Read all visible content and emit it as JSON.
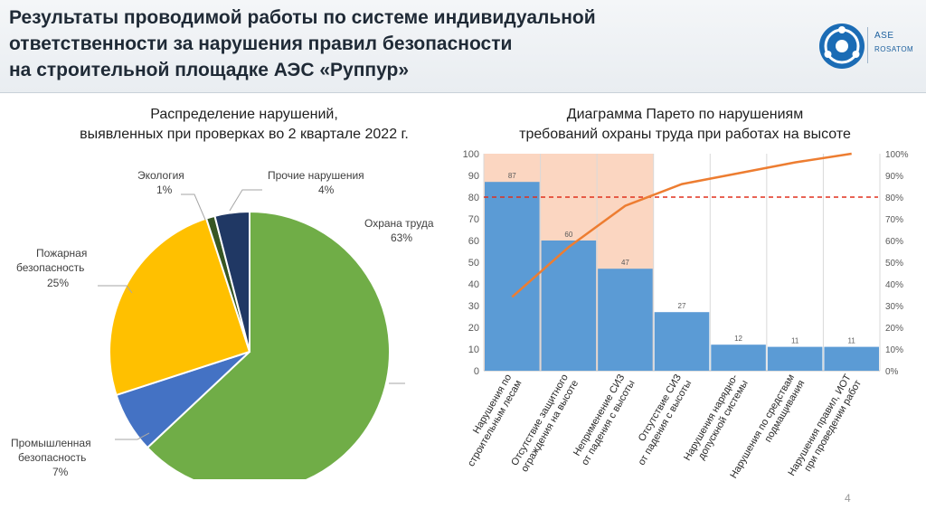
{
  "header": {
    "title_lines": [
      "Результаты проводимой работы по системе индивидуальной",
      "ответственности за нарушения правил безопасности",
      "на строительной площадке АЭС «Руппур»"
    ],
    "logo": {
      "line1": "ASE",
      "line2": "ROSATOM",
      "icon": "rosatom-atom-icon",
      "brand_color": "#1b6cb5"
    }
  },
  "chart_data": [
    {
      "type": "pie",
      "title_lines": [
        "Распределение нарушений,",
        "выявленных при проверках во 2 квартале 2022 г."
      ],
      "slices": [
        {
          "name": "Охрана труда",
          "value": 63,
          "label": "63%",
          "color": "#70ad47"
        },
        {
          "name": "Промышленная безопасность",
          "value": 7,
          "label": "7%",
          "color": "#4472c4"
        },
        {
          "name": "Пожарная безопасность",
          "value": 25,
          "label": "25%",
          "color": "#ffc000"
        },
        {
          "name": "Экология",
          "value": 1,
          "label": "1%",
          "color": "#375623"
        },
        {
          "name": "Прочие нарушения",
          "value": 4,
          "label": "4%",
          "color": "#203864"
        }
      ],
      "label_texts": {
        "ohrana": [
          "Охрана труда",
          "63%"
        ],
        "prom": [
          "Промышленная",
          "безопасность",
          "7%"
        ],
        "pozh": [
          "Пожарная",
          "безопасность",
          "25%"
        ],
        "eco": [
          "Экология",
          "1%"
        ],
        "other": [
          "Прочие нарушения",
          "4%"
        ]
      }
    },
    {
      "type": "bar",
      "subtype": "pareto",
      "title_lines": [
        "Диаграмма Парето по нарушениям",
        "требований охраны труда при работах на высоте"
      ],
      "categories": [
        [
          "Нарушения по",
          "строительным лесам"
        ],
        [
          "Отсутствие защитного",
          "ограждения на высоте"
        ],
        [
          "Неприменение СИЗ",
          "от падения с высоты"
        ],
        [
          "Отсутствие СИЗ",
          "от падения с высоты"
        ],
        [
          "Нарушения нарядно-",
          "допускной системы"
        ],
        [
          "Нарушения по средствам",
          "подмащивания"
        ],
        [
          "Нарушения правил, ИОТ",
          "при проведении работ"
        ]
      ],
      "values": [
        87,
        60,
        47,
        27,
        12,
        11,
        11
      ],
      "cumulative_percent": [
        34,
        57,
        76,
        86,
        91,
        96,
        100
      ],
      "ylim": [
        0,
        100
      ],
      "yticks": [
        0,
        10,
        20,
        30,
        40,
        50,
        60,
        70,
        80,
        90,
        100
      ],
      "y2lim": [
        0,
        100
      ],
      "y2ticks": [
        "0%",
        "10%",
        "20%",
        "30%",
        "40%",
        "50%",
        "60%",
        "70%",
        "80%",
        "90%",
        "100%"
      ],
      "threshold_percent": 80,
      "highlighted_categories": 3,
      "colors": {
        "bar": "#5b9bd5",
        "line": "#ed7d31",
        "threshold": "#e0301e",
        "highlight": "#fbd6c1"
      }
    }
  ],
  "footer": {
    "page_number": "4"
  }
}
